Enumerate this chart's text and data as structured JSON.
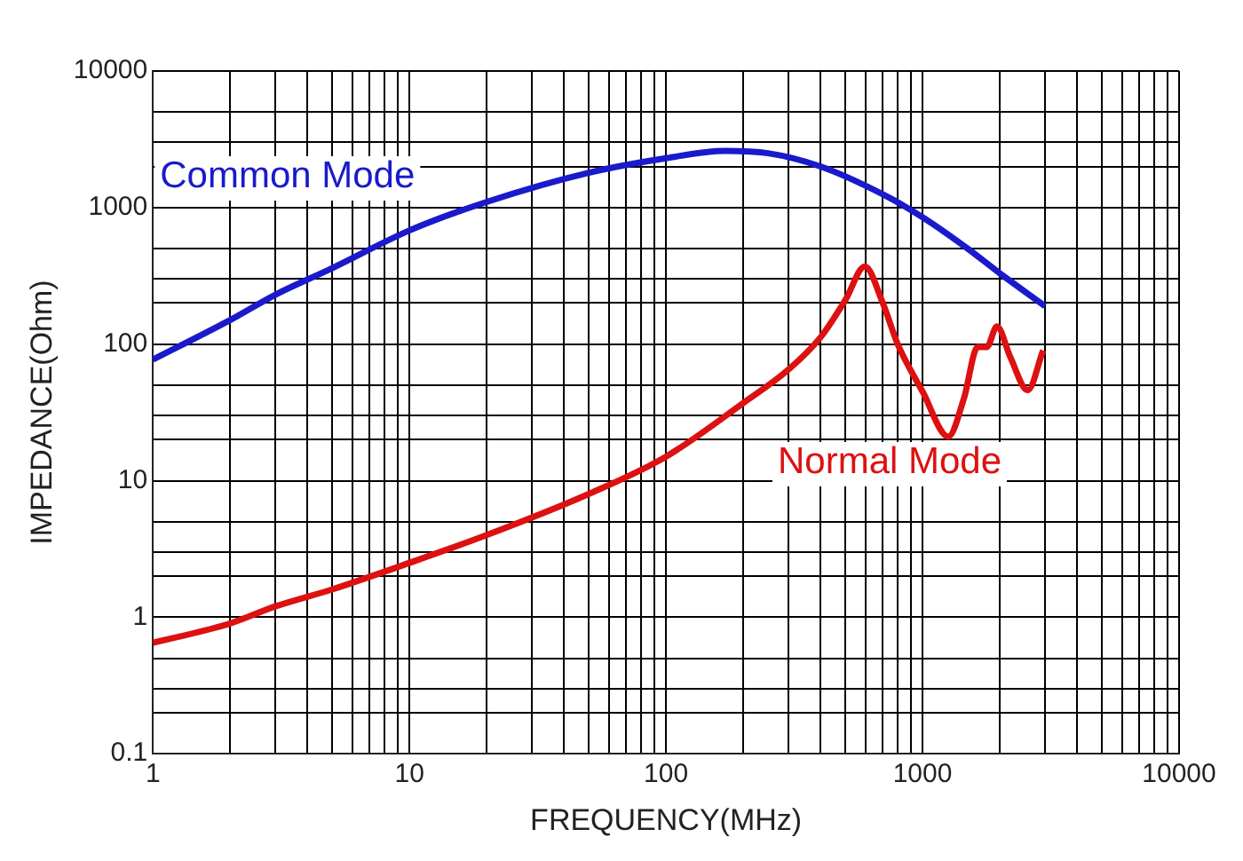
{
  "chart_data": {
    "type": "line",
    "xlabel": "FREQUENCY(MHz)",
    "ylabel": "IMPEDANCE(Ohm)",
    "log": "xy",
    "grid": true,
    "legend": false,
    "marker": "none",
    "line_style": "solid",
    "xlim": [
      1,
      10000
    ],
    "ylim": [
      0.1,
      10000
    ],
    "xticks": [
      1,
      {
        "value": 2,
        "label": null
      },
      {
        "value": 3,
        "label": null
      },
      {
        "value": 4,
        "label": null
      },
      {
        "value": 5,
        "label": null
      },
      {
        "value": 6,
        "label": null
      },
      {
        "value": 7,
        "label": null
      },
      {
        "value": 8,
        "label": null
      },
      {
        "value": 9,
        "label": null
      },
      10,
      {
        "value": 20,
        "label": null
      },
      {
        "value": 30,
        "label": null
      },
      {
        "value": 40,
        "label": null
      },
      {
        "value": 50,
        "label": null
      },
      {
        "value": 60,
        "label": null
      },
      {
        "value": 70,
        "label": null
      },
      {
        "value": 80,
        "label": null
      },
      {
        "value": 90,
        "label": null
      },
      100,
      {
        "value": 200,
        "label": null
      },
      {
        "value": 300,
        "label": null
      },
      {
        "value": 400,
        "label": null
      },
      {
        "value": 500,
        "label": null
      },
      {
        "value": 600,
        "label": null
      },
      {
        "value": 700,
        "label": null
      },
      {
        "value": 800,
        "label": null
      },
      {
        "value": 900,
        "label": null
      },
      1000,
      {
        "value": 2000,
        "label": null
      },
      {
        "value": 3000,
        "label": null
      },
      {
        "value": 4000,
        "label": null
      },
      {
        "value": 5000,
        "label": null
      },
      {
        "value": 6000,
        "label": null
      },
      {
        "value": 7000,
        "label": null
      },
      {
        "value": 8000,
        "label": null
      },
      {
        "value": 9000,
        "label": null
      },
      10000
    ],
    "yticks": [
      0.1,
      {
        "value": 0.2,
        "label": null
      },
      {
        "value": 0.3,
        "label": null
      },
      {
        "value": 0.5,
        "label": null
      },
      1,
      {
        "value": 2,
        "label": null
      },
      {
        "value": 3,
        "label": null
      },
      {
        "value": 5,
        "label": null
      },
      10,
      {
        "value": 20,
        "label": null
      },
      {
        "value": 30,
        "label": null
      },
      {
        "value": 50,
        "label": null
      },
      100,
      {
        "value": 200,
        "label": null
      },
      {
        "value": 300,
        "label": null
      },
      {
        "value": 500,
        "label": null
      },
      1000,
      {
        "value": 2000,
        "label": null
      },
      {
        "value": 3000,
        "label": null
      },
      {
        "value": 5000,
        "label": null
      },
      10000
    ],
    "series": [
      {
        "name": "Common Mode",
        "color": "#1a1acc",
        "x": [
          1,
          2,
          3,
          5,
          10,
          20,
          50,
          100,
          170,
          250,
          400,
          700,
          1000,
          1500,
          2000,
          3000
        ],
        "values": [
          77,
          150,
          230,
          360,
          680,
          1100,
          1800,
          2300,
          2600,
          2500,
          2000,
          1250,
          850,
          500,
          330,
          190
        ]
      },
      {
        "name": "Normal Mode",
        "color": "#dd1111",
        "x": [
          1,
          2,
          3,
          5,
          10,
          20,
          50,
          100,
          200,
          300,
          400,
          500,
          596,
          700,
          800,
          1000,
          1260,
          1450,
          1640,
          1780,
          1950,
          2200,
          2570,
          2950
        ],
        "values": [
          0.65,
          0.9,
          1.2,
          1.6,
          2.5,
          4,
          8,
          15,
          37,
          65,
          112,
          210,
          370,
          200,
          100,
          45,
          21,
          40,
          95,
          95,
          135,
          80,
          46,
          90
        ]
      }
    ]
  }
}
